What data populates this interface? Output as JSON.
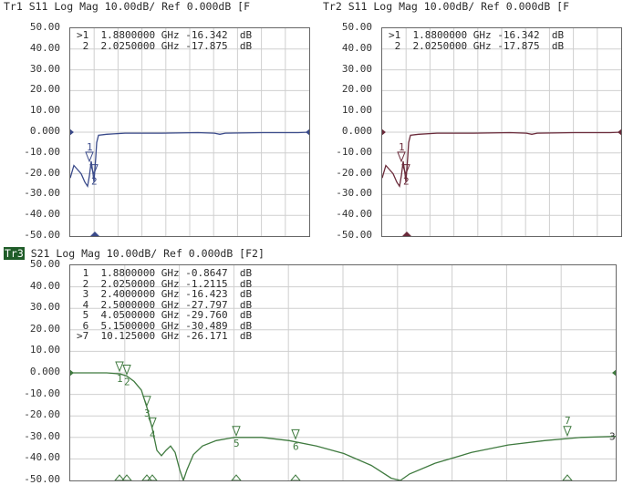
{
  "tr1": {
    "header": "Tr1 S11 Log Mag 10.00dB/ Ref 0.000dB [F",
    "y_ticks": [
      "50.00",
      "40.00",
      "30.00",
      "20.00",
      "10.00",
      "0.000",
      "-10.00",
      "-20.00",
      "-30.00",
      "-40.00",
      "-50.00"
    ],
    "markers": [
      {
        "num": ">1",
        "freq": "1.8800000",
        "unit": "GHz",
        "val": "-16.342",
        "db": "dB"
      },
      {
        "num": " 2",
        "freq": "2.0250000",
        "unit": "GHz",
        "val": "-17.875",
        "db": "dB"
      }
    ],
    "marker_labels": [
      "1",
      "2"
    ],
    "color": "#3a4a8a"
  },
  "tr2": {
    "header": "Tr2 S11 Log Mag 10.00dB/ Ref 0.000dB [F",
    "y_ticks": [
      "50.00",
      "40.00",
      "30.00",
      "20.00",
      "10.00",
      "0.000",
      "-10.00",
      "-20.00",
      "-30.00",
      "-40.00",
      "-50.00"
    ],
    "markers": [
      {
        "num": ">1",
        "freq": "1.8800000",
        "unit": "GHz",
        "val": "-16.342",
        "db": "dB"
      },
      {
        "num": " 2",
        "freq": "2.0250000",
        "unit": "GHz",
        "val": "-17.875",
        "db": "dB"
      }
    ],
    "marker_labels": [
      "1",
      "2"
    ],
    "color": "#6a2a3a"
  },
  "tr3": {
    "badge": "Tr3",
    "header": " S21 Log Mag 10.00dB/ Ref 0.000dB [F2]",
    "y_ticks": [
      "50.00",
      "40.00",
      "30.00",
      "20.00",
      "10.00",
      "0.000",
      "-10.00",
      "-20.00",
      "-30.00",
      "-40.00",
      "-50.00"
    ],
    "markers": [
      {
        "num": " 1",
        "freq": "1.8800000",
        "unit": "GHz",
        "val": "-0.8647",
        "db": "dB"
      },
      {
        "num": " 2",
        "freq": "2.0250000",
        "unit": "GHz",
        "val": "-1.2115",
        "db": "dB"
      },
      {
        "num": " 3",
        "freq": "2.4000000",
        "unit": "GHz",
        "val": "-16.423",
        "db": "dB"
      },
      {
        "num": " 4",
        "freq": "2.5000000",
        "unit": "GHz",
        "val": "-27.797",
        "db": "dB"
      },
      {
        "num": " 5",
        "freq": "4.0500000",
        "unit": "GHz",
        "val": "-29.760",
        "db": "dB"
      },
      {
        "num": " 6",
        "freq": "5.1500000",
        "unit": "GHz",
        "val": "-30.489",
        "db": "dB"
      },
      {
        "num": ">7",
        "freq": "10.125000",
        "unit": "GHz",
        "val": "-26.171",
        "db": "dB"
      }
    ],
    "marker_labels": [
      "1",
      "2",
      "3",
      "4",
      "5",
      "6",
      "7"
    ],
    "right_label": "3",
    "color": "#3f7a3f"
  },
  "colors": {
    "grid": "#cfcfcf",
    "border": "#666666",
    "badge": "#1f5c28"
  }
}
